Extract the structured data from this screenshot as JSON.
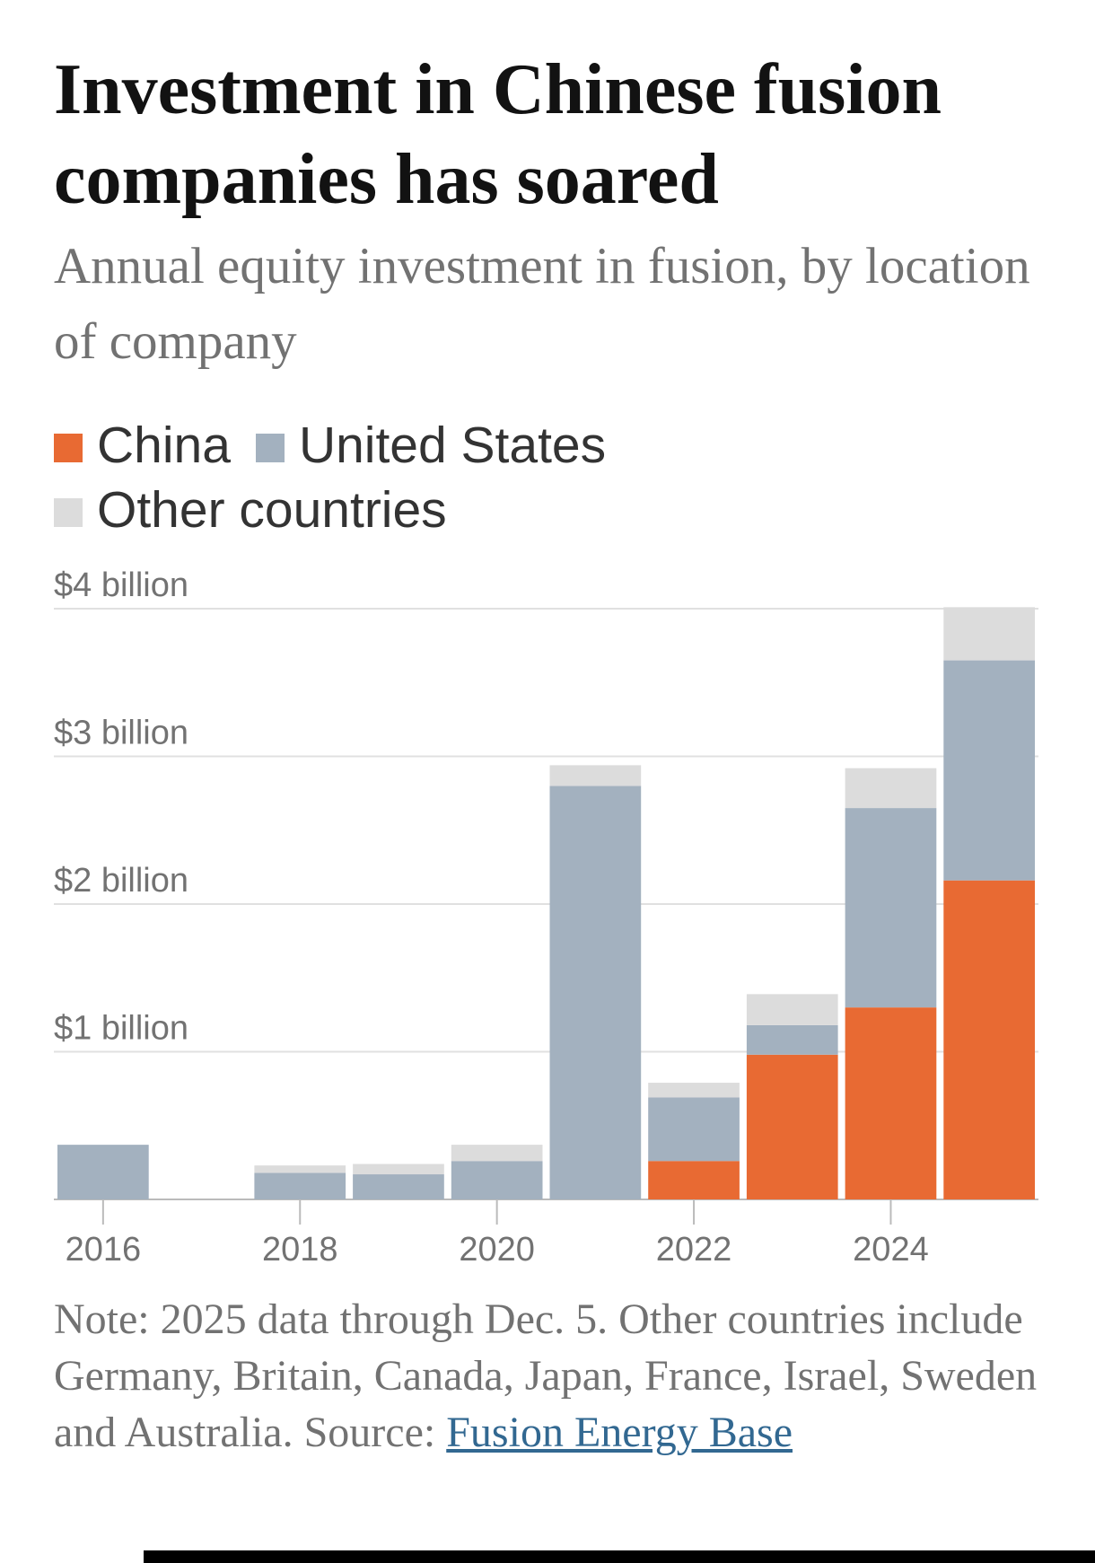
{
  "chart_data": {
    "type": "stacked-bar",
    "title": "Investment in Chinese fusion companies has soared",
    "subtitle": "Annual equity investment in fusion, by location of company",
    "categories": [
      "2016",
      null,
      "2018",
      null,
      "2020",
      null,
      "2022",
      null,
      "2024",
      null
    ],
    "series": [
      {
        "name": "China",
        "color": "#e86a33",
        "values": [
          0,
          0,
          0,
          0,
          0,
          0,
          0.26,
          0.98,
          1.3,
          2.16
        ]
      },
      {
        "name": "United States",
        "color": "#a3b1bf",
        "values": [
          0.37,
          0,
          0.18,
          0.17,
          0.26,
          2.8,
          0.43,
          0.2,
          1.35,
          1.49
        ]
      },
      {
        "name": "Other countries",
        "color": "#dcdcdc",
        "values": [
          0,
          0,
          0.05,
          0.07,
          0.11,
          0.14,
          0.1,
          0.21,
          0.27,
          0.36
        ]
      }
    ],
    "ylim": [
      0,
      4
    ],
    "yticks": [
      {
        "value": 1,
        "label": "$1 billion"
      },
      {
        "value": 2,
        "label": "$2 billion"
      },
      {
        "value": 3,
        "label": "$3 billion"
      },
      {
        "value": 4,
        "label": "$4 billion"
      }
    ],
    "grid": true,
    "note": "Note: 2025 data through Dec. 5. Other countries include Germany, Britain, Canada, Japan, France, Israel, Sweden and Australia. Source:",
    "source_link": "Fusion Energy Base"
  }
}
